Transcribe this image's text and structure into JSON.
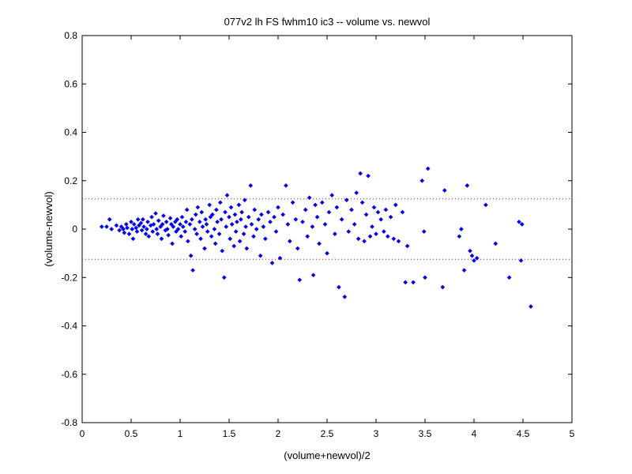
{
  "chart_data": {
    "type": "scatter",
    "title": "077v2 lh FS fwhm10 ic3 -- volume vs. newvol",
    "xlabel": "(volume+newvol)/2",
    "ylabel": "(volume-newvol)",
    "xlim": [
      0,
      5
    ],
    "ylim": [
      -0.8,
      0.8
    ],
    "xticks": [
      0,
      0.5,
      1,
      1.5,
      2,
      2.5,
      3,
      3.5,
      4,
      4.5,
      5
    ],
    "xtick_labels": [
      "0",
      "0.5",
      "1",
      "1.5",
      "2",
      "2.5",
      "3",
      "3.5",
      "4",
      "4.5",
      "5"
    ],
    "yticks": [
      -0.8,
      -0.6,
      -0.4,
      -0.2,
      0,
      0.2,
      0.4,
      0.6,
      0.8
    ],
    "ytick_labels": [
      "-0.8",
      "-0.6",
      "-0.4",
      "-0.2",
      "0",
      "0.2",
      "0.4",
      "0.6",
      "0.8"
    ],
    "grid": false,
    "reference_lines": [
      0.125,
      -0.125
    ],
    "marker_color": "#0000ff",
    "reference_line_color": "#ff0000",
    "points": [
      [
        0.2,
        0.01
      ],
      [
        0.25,
        0.01
      ],
      [
        0.28,
        0.04
      ],
      [
        0.3,
        0.0
      ],
      [
        0.35,
        0.015
      ],
      [
        0.38,
        -0.005
      ],
      [
        0.4,
        0.01
      ],
      [
        0.42,
        0.0
      ],
      [
        0.43,
        -0.015
      ],
      [
        0.45,
        0.02
      ],
      [
        0.46,
        0.005
      ],
      [
        0.48,
        -0.02
      ],
      [
        0.5,
        0.03
      ],
      [
        0.51,
        0.0
      ],
      [
        0.52,
        -0.04
      ],
      [
        0.53,
        0.02
      ],
      [
        0.55,
        0.005
      ],
      [
        0.56,
        -0.01
      ],
      [
        0.57,
        0.04
      ],
      [
        0.58,
        0.015
      ],
      [
        0.6,
        0.025
      ],
      [
        0.61,
        -0.005
      ],
      [
        0.62,
        0.04
      ],
      [
        0.63,
        0.01
      ],
      [
        0.65,
        -0.02
      ],
      [
        0.66,
        0.0
      ],
      [
        0.67,
        0.03
      ],
      [
        0.68,
        -0.03
      ],
      [
        0.7,
        0.015
      ],
      [
        0.71,
        0.05
      ],
      [
        0.72,
        -0.01
      ],
      [
        0.73,
        0.02
      ],
      [
        0.75,
        0.065
      ],
      [
        0.76,
        0.0
      ],
      [
        0.77,
        -0.02
      ],
      [
        0.78,
        0.035
      ],
      [
        0.8,
        0.01
      ],
      [
        0.81,
        -0.04
      ],
      [
        0.82,
        0.02
      ],
      [
        0.83,
        0.055
      ],
      [
        0.85,
        -0.005
      ],
      [
        0.86,
        0.03
      ],
      [
        0.87,
        0.0
      ],
      [
        0.88,
        -0.025
      ],
      [
        0.9,
        0.045
      ],
      [
        0.91,
        0.02
      ],
      [
        0.92,
        -0.06
      ],
      [
        0.93,
        0.01
      ],
      [
        0.95,
        0.03
      ],
      [
        0.96,
        -0.01
      ],
      [
        0.97,
        0.04
      ],
      [
        0.98,
        0.0
      ],
      [
        1.0,
        0.02
      ],
      [
        1.01,
        -0.03
      ],
      [
        1.02,
        0.05
      ],
      [
        1.03,
        0.01
      ],
      [
        1.05,
        -0.01
      ],
      [
        1.06,
        0.03
      ],
      [
        1.07,
        0.08
      ],
      [
        1.08,
        -0.05
      ],
      [
        1.1,
        0.02
      ],
      [
        1.11,
        -0.11
      ],
      [
        1.12,
        0.04
      ],
      [
        1.13,
        -0.17
      ],
      [
        1.15,
        0.0
      ],
      [
        1.16,
        0.06
      ],
      [
        1.17,
        -0.02
      ],
      [
        1.18,
        0.09
      ],
      [
        1.2,
        0.03
      ],
      [
        1.21,
        -0.04
      ],
      [
        1.22,
        0.07
      ],
      [
        1.23,
        0.01
      ],
      [
        1.25,
        -0.08
      ],
      [
        1.26,
        0.04
      ],
      [
        1.27,
        0.02
      ],
      [
        1.28,
        -0.01
      ],
      [
        1.3,
        0.1
      ],
      [
        1.31,
        0.05
      ],
      [
        1.32,
        -0.03
      ],
      [
        1.33,
        0.06
      ],
      [
        1.35,
        0.0
      ],
      [
        1.36,
        -0.06
      ],
      [
        1.37,
        0.08
      ],
      [
        1.38,
        0.03
      ],
      [
        1.4,
        -0.02
      ],
      [
        1.41,
        0.11
      ],
      [
        1.42,
        0.04
      ],
      [
        1.43,
        -0.09
      ],
      [
        1.45,
        -0.2
      ],
      [
        1.46,
        0.07
      ],
      [
        1.47,
        0.01
      ],
      [
        1.48,
        0.14
      ],
      [
        1.5,
        0.05
      ],
      [
        1.51,
        -0.04
      ],
      [
        1.52,
        0.09
      ],
      [
        1.53,
        0.02
      ],
      [
        1.55,
        -0.07
      ],
      [
        1.56,
        0.06
      ],
      [
        1.57,
        -0.01
      ],
      [
        1.58,
        0.03
      ],
      [
        1.6,
        0.1
      ],
      [
        1.61,
        -0.05
      ],
      [
        1.62,
        0.04
      ],
      [
        1.63,
        0.07
      ],
      [
        1.65,
        -0.02
      ],
      [
        1.66,
        0.12
      ],
      [
        1.67,
        0.01
      ],
      [
        1.68,
        -0.08
      ],
      [
        1.7,
        0.05
      ],
      [
        1.72,
        0.18
      ],
      [
        1.73,
        0.02
      ],
      [
        1.75,
        -0.03
      ],
      [
        1.76,
        0.08
      ],
      [
        1.78,
        0.0
      ],
      [
        1.8,
        0.04
      ],
      [
        1.82,
        -0.11
      ],
      [
        1.83,
        0.06
      ],
      [
        1.85,
        0.01
      ],
      [
        1.87,
        -0.04
      ],
      [
        1.9,
        0.07
      ],
      [
        1.92,
        0.03
      ],
      [
        1.94,
        -0.14
      ],
      [
        1.96,
        0.05
      ],
      [
        1.98,
        -0.01
      ],
      [
        2.0,
        0.09
      ],
      [
        2.02,
        -0.12
      ],
      [
        2.05,
        0.06
      ],
      [
        2.08,
        0.18
      ],
      [
        2.1,
        0.02
      ],
      [
        2.12,
        -0.05
      ],
      [
        2.15,
        0.11
      ],
      [
        2.18,
        0.04
      ],
      [
        2.2,
        -0.08
      ],
      [
        2.22,
        -0.21
      ],
      [
        2.25,
        0.03
      ],
      [
        2.28,
        0.08
      ],
      [
        2.3,
        -0.03
      ],
      [
        2.32,
        0.13
      ],
      [
        2.35,
        0.01
      ],
      [
        2.36,
        -0.19
      ],
      [
        2.38,
        0.1
      ],
      [
        2.4,
        0.05
      ],
      [
        2.42,
        -0.06
      ],
      [
        2.45,
        0.11
      ],
      [
        2.48,
        0.02
      ],
      [
        2.5,
        -0.1
      ],
      [
        2.52,
        0.07
      ],
      [
        2.55,
        0.14
      ],
      [
        2.58,
        -0.02
      ],
      [
        2.6,
        0.09
      ],
      [
        2.62,
        -0.24
      ],
      [
        2.65,
        0.04
      ],
      [
        2.68,
        -0.28
      ],
      [
        2.7,
        0.12
      ],
      [
        2.72,
        -0.01
      ],
      [
        2.75,
        0.08
      ],
      [
        2.78,
        0.02
      ],
      [
        2.8,
        0.15
      ],
      [
        2.82,
        -0.04
      ],
      [
        2.84,
        0.23
      ],
      [
        2.86,
        0.11
      ],
      [
        2.88,
        -0.05
      ],
      [
        2.9,
        0.06
      ],
      [
        2.92,
        0.22
      ],
      [
        2.94,
        -0.03
      ],
      [
        2.96,
        0.01
      ],
      [
        2.98,
        0.09
      ],
      [
        3.0,
        -0.02
      ],
      [
        3.02,
        0.07
      ],
      [
        3.05,
        0.04
      ],
      [
        3.08,
        -0.01
      ],
      [
        3.1,
        0.08
      ],
      [
        3.12,
        -0.03
      ],
      [
        3.15,
        0.05
      ],
      [
        3.18,
        -0.04
      ],
      [
        3.2,
        0.1
      ],
      [
        3.23,
        -0.05
      ],
      [
        3.27,
        0.07
      ],
      [
        3.3,
        -0.22
      ],
      [
        3.32,
        -0.07
      ],
      [
        3.38,
        -0.22
      ],
      [
        3.47,
        0.2
      ],
      [
        3.49,
        -0.01
      ],
      [
        3.5,
        -0.2
      ],
      [
        3.53,
        0.25
      ],
      [
        3.68,
        -0.24
      ],
      [
        3.7,
        0.16
      ],
      [
        3.85,
        -0.03
      ],
      [
        3.87,
        0.0
      ],
      [
        3.9,
        -0.17
      ],
      [
        3.93,
        0.18
      ],
      [
        3.96,
        -0.09
      ],
      [
        3.98,
        -0.11
      ],
      [
        4.0,
        -0.13
      ],
      [
        4.03,
        -0.12
      ],
      [
        4.12,
        0.1
      ],
      [
        4.22,
        -0.06
      ],
      [
        4.36,
        -0.2
      ],
      [
        4.46,
        0.03
      ],
      [
        4.48,
        -0.13
      ],
      [
        4.49,
        0.02
      ],
      [
        4.58,
        -0.32
      ]
    ]
  }
}
